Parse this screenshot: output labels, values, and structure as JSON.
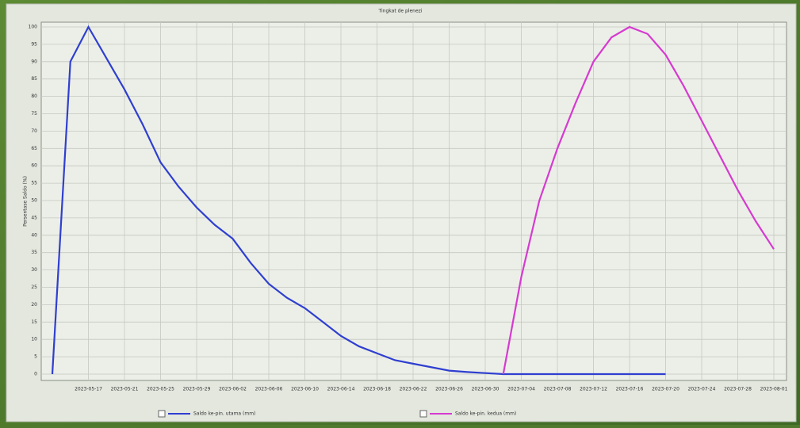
{
  "chart_data": {
    "type": "line",
    "title": "Tingkat de plenezi",
    "y_label": "Persentase Saldo (%)",
    "categories": [
      null,
      null,
      "2023-05-17",
      null,
      "2023-05-21",
      null,
      "2023-05-25",
      null,
      "2023-05-29",
      null,
      "2023-06-02",
      null,
      "2023-06-06",
      null,
      "2023-06-10",
      null,
      "2023-06-14",
      null,
      "2023-06-18",
      null,
      "2023-06-22",
      null,
      "2023-06-26",
      null,
      "2023-06-30",
      null,
      "2023-07-04",
      null,
      "2023-07-08",
      null,
      "2023-07-12",
      null,
      "2023-07-16",
      null,
      "2023-07-20",
      null,
      "2023-07-24",
      null,
      "2023-07-28",
      null,
      "2023-08-01"
    ],
    "series": [
      {
        "name": "Saldo ke-pin. utama (mm)",
        "color": "#2f3fd0",
        "values": [
          0,
          90,
          100,
          91,
          82,
          72,
          61,
          54,
          48,
          43,
          39,
          32,
          26,
          22,
          19,
          15,
          11,
          8,
          6,
          4,
          3,
          2,
          1,
          0.6,
          0.3,
          0,
          0,
          0,
          0,
          0,
          0,
          0,
          0,
          0,
          0,
          null,
          null,
          null,
          null,
          null,
          null
        ]
      },
      {
        "name": "Saldo ke-pin. kedua (mm)",
        "color": "#d63ad0",
        "values": [
          null,
          null,
          null,
          null,
          null,
          null,
          null,
          null,
          null,
          null,
          null,
          null,
          null,
          null,
          null,
          null,
          null,
          null,
          null,
          null,
          null,
          null,
          null,
          null,
          null,
          0,
          28,
          50,
          65,
          78,
          90,
          97,
          100,
          98,
          92,
          83,
          73,
          63,
          53,
          44,
          36
        ]
      }
    ],
    "ylim": [
      0,
      100
    ],
    "yticks": [
      0,
      5,
      10,
      15,
      20,
      25,
      30,
      35,
      40,
      45,
      50,
      55,
      60,
      65,
      70,
      75,
      80,
      85,
      90,
      95,
      100
    ],
    "grid": true
  }
}
